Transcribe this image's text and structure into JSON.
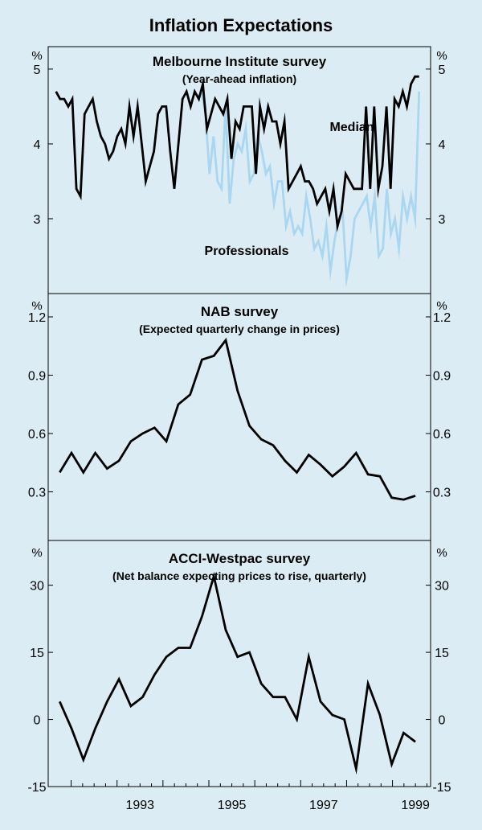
{
  "chart_data": {
    "type": "line",
    "title": "Inflation Expectations",
    "x_ticks": [
      "1993",
      "1995",
      "1997",
      "1999"
    ],
    "panels": [
      {
        "title": "Melbourne Institute survey",
        "subtitle": "(Year-ahead inflation)",
        "unit": "%",
        "ylim": [
          2.0,
          5.3
        ],
        "yticks": [
          "5",
          "4",
          "3"
        ],
        "series": [
          {
            "name": "Median",
            "color": "#000000",
            "x_range": [
              1991.67,
              1999.58
            ],
            "values": [
              4.7,
              4.6,
              4.6,
              4.5,
              4.6,
              3.4,
              3.3,
              4.4,
              4.5,
              4.6,
              4.3,
              4.1,
              4.0,
              3.8,
              3.9,
              4.1,
              4.2,
              4.0,
              4.5,
              4.1,
              4.5,
              4.0,
              3.5,
              3.7,
              3.9,
              4.4,
              4.5,
              4.5,
              3.9,
              3.4,
              4.0,
              4.6,
              4.7,
              4.5,
              4.7,
              4.6,
              4.8,
              4.2,
              4.4,
              4.6,
              4.5,
              4.4,
              4.6,
              3.8,
              4.3,
              4.2,
              4.5,
              4.5,
              4.5,
              3.6,
              4.5,
              4.2,
              4.5,
              4.3,
              4.3,
              4.0,
              4.3,
              3.4,
              3.5,
              3.6,
              3.7,
              3.5,
              3.5,
              3.4,
              3.2,
              3.3,
              3.4,
              3.1,
              3.4,
              2.9,
              3.1,
              3.6,
              3.5,
              3.4,
              3.4,
              3.4,
              4.5,
              3.4,
              4.5,
              3.4,
              3.7,
              4.5,
              3.4,
              4.6,
              4.5,
              4.7,
              4.5,
              4.8,
              4.9,
              4.9
            ]
          },
          {
            "name": "Professionals",
            "color": "#a9d6f0",
            "x_range": [
              1994.75,
              1999.58
            ],
            "values": [
              4.6,
              4.7,
              4.4,
              3.6,
              4.1,
              3.5,
              3.4,
              4.5,
              3.2,
              3.8,
              4.0,
              3.9,
              4.2,
              3.5,
              3.6,
              4.1,
              3.9,
              3.6,
              3.7,
              3.2,
              3.5,
              3.5,
              2.9,
              3.1,
              2.8,
              2.9,
              2.8,
              3.3,
              3.0,
              2.6,
              2.7,
              2.5,
              2.9,
              2.3,
              2.7,
              3.0,
              3.1,
              2.2,
              2.5,
              3.0,
              3.1,
              3.2,
              3.3,
              2.9,
              3.3,
              2.5,
              2.6,
              3.4,
              2.8,
              3.0,
              2.6,
              3.3,
              3.0,
              3.3,
              3.0,
              4.7
            ]
          }
        ],
        "labels": [
          "Median",
          "Professionals"
        ]
      },
      {
        "title": "NAB survey",
        "subtitle": "(Expected quarterly change in prices)",
        "unit": "%",
        "ylim": [
          0.05,
          1.32
        ],
        "yticks": [
          "1.2",
          "0.9",
          "0.6",
          "0.3"
        ],
        "series": [
          {
            "name": "NAB",
            "color": "#000000",
            "x_range": [
              1991.75,
              1999.5
            ],
            "values": [
              0.4,
              0.5,
              0.4,
              0.5,
              0.42,
              0.46,
              0.56,
              0.6,
              0.63,
              0.56,
              0.75,
              0.8,
              0.98,
              1.0,
              1.08,
              0.82,
              0.64,
              0.57,
              0.54,
              0.46,
              0.4,
              0.49,
              0.44,
              0.38,
              0.43,
              0.5,
              0.39,
              0.38,
              0.27,
              0.26,
              0.28
            ]
          }
        ]
      },
      {
        "title": "ACCI-Westpac survey",
        "subtitle": "(Net balance expecting prices to rise, quarterly)",
        "unit": "%",
        "ylim": [
          -15,
          40
        ],
        "yticks": [
          "30",
          "15",
          "0",
          "-15"
        ],
        "series": [
          {
            "name": "ACCI-Westpac",
            "color": "#000000",
            "x_range": [
              1991.75,
              1999.5
            ],
            "values": [
              4,
              -2,
              -9,
              -2,
              4,
              9,
              3,
              5,
              10,
              14,
              16,
              16,
              23,
              32,
              20,
              14,
              15,
              8,
              5,
              5,
              0,
              14,
              4,
              1,
              0,
              -11,
              8,
              1,
              -10,
              -3,
              -5
            ]
          }
        ]
      }
    ]
  }
}
